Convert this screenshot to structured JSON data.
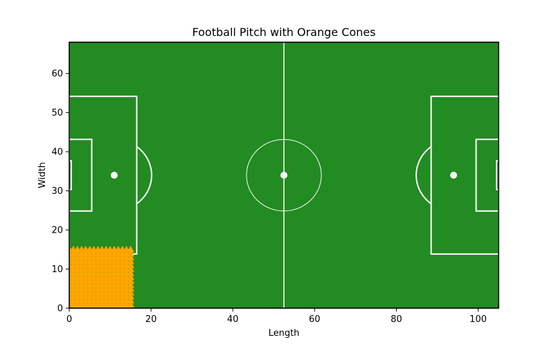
{
  "chart_data": {
    "type": "scatter",
    "title": "Football Pitch with Orange Cones",
    "xlabel": "Length",
    "ylabel": "Width",
    "xlim": [
      0,
      105
    ],
    "ylim": [
      0,
      68
    ],
    "x_ticks": [
      0,
      20,
      40,
      60,
      80,
      100
    ],
    "y_ticks": [
      0,
      10,
      20,
      30,
      40,
      50,
      60
    ],
    "grid": false,
    "pitch": {
      "length": 105,
      "width": 68,
      "surface_color": "#228b22",
      "line_color": "#ffffff",
      "halfway_x": 52.5,
      "centre_spot": [
        52.5,
        34
      ],
      "centre_circle_radius": 9.15,
      "penalty_spots": [
        [
          11,
          34
        ],
        [
          94,
          34
        ]
      ],
      "penalty_arc_radius": 9.15,
      "penalty_areas": [
        {
          "x": [
            0,
            16.5
          ],
          "y": [
            13.84,
            54.16
          ]
        },
        {
          "x": [
            88.5,
            105
          ],
          "y": [
            13.84,
            54.16
          ]
        }
      ],
      "goal_areas": [
        {
          "x": [
            0,
            5.5
          ],
          "y": [
            24.84,
            43.16
          ]
        },
        {
          "x": [
            99.5,
            105
          ],
          "y": [
            24.84,
            43.16
          ]
        }
      ],
      "goals": [
        {
          "x": [
            -0.5,
            0.5
          ],
          "y": [
            30.34,
            37.66
          ]
        },
        {
          "x": [
            104.5,
            105.5
          ],
          "y": [
            30.34,
            37.66
          ]
        }
      ]
    },
    "cones": {
      "color": "#ffa500",
      "marker": "triangle",
      "x_range": [
        0,
        15
      ],
      "y_range": [
        0,
        15
      ],
      "step": 1
    }
  }
}
